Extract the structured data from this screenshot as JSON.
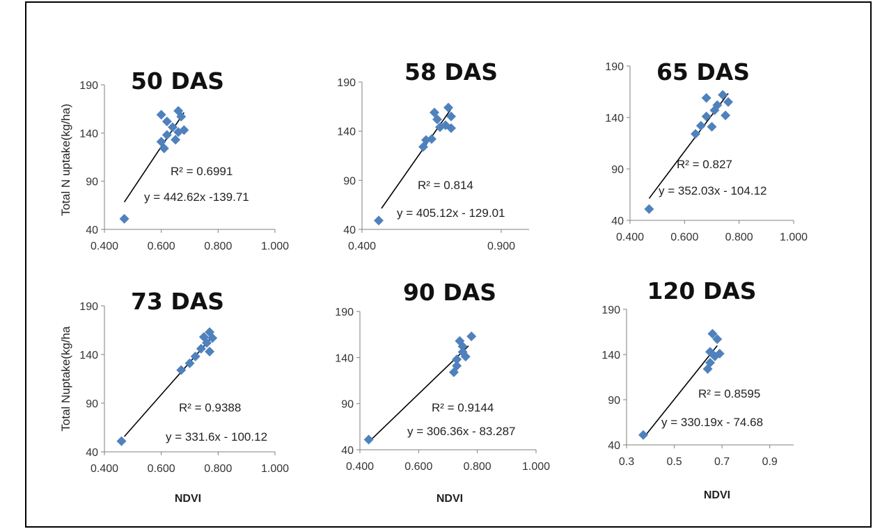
{
  "colors": {
    "marker": "#4f81bd",
    "axis": "#7f7f7f",
    "trendline": "#000000"
  },
  "chart_data": [
    {
      "type": "scatter",
      "title": "50 DAS",
      "ylabel": "Total N uptake(kg/ha)",
      "xlabel": "",
      "xlim": [
        0.4,
        1.0
      ],
      "ylim": [
        40,
        190
      ],
      "xticks": [
        "0.400",
        "0.600",
        "0.800",
        "1.000"
      ],
      "yticks": [
        "40",
        "90",
        "140",
        "190"
      ],
      "r2_label": "R² = 0.6991",
      "equation_label": "y = 442.62x -139.71",
      "trendline": {
        "slope": 442.62,
        "intercept": -139.71,
        "x_range": [
          0.47,
          0.68
        ]
      },
      "points": [
        [
          0.47,
          51
        ],
        [
          0.6,
          131
        ],
        [
          0.61,
          124
        ],
        [
          0.62,
          138
        ],
        [
          0.6,
          159
        ],
        [
          0.62,
          152
        ],
        [
          0.64,
          146
        ],
        [
          0.65,
          133
        ],
        [
          0.66,
          141
        ],
        [
          0.66,
          163
        ],
        [
          0.67,
          157
        ],
        [
          0.68,
          143
        ]
      ]
    },
    {
      "type": "scatter",
      "title": "58 DAS",
      "ylabel": "",
      "xlabel": "",
      "xlim": [
        0.4,
        1.0
      ],
      "ylim": [
        40,
        190
      ],
      "xticks": [
        "0.400",
        "0.900"
      ],
      "yticks": [
        "40",
        "90",
        "140",
        "190"
      ],
      "r2_label": "R² = 0.814",
      "equation_label": "y = 405.12x - 129.01",
      "trendline": {
        "slope": 405.12,
        "intercept": -129.01,
        "x_range": [
          0.47,
          0.72
        ]
      },
      "points": [
        [
          0.46,
          49
        ],
        [
          0.62,
          124
        ],
        [
          0.63,
          131
        ],
        [
          0.65,
          132
        ],
        [
          0.66,
          159
        ],
        [
          0.67,
          152
        ],
        [
          0.68,
          144
        ],
        [
          0.7,
          146
        ],
        [
          0.71,
          164
        ],
        [
          0.72,
          143
        ],
        [
          0.72,
          155
        ]
      ]
    },
    {
      "type": "scatter",
      "title": "65 DAS",
      "ylabel": "",
      "xlabel": "",
      "xlim": [
        0.4,
        1.0
      ],
      "ylim": [
        40,
        190
      ],
      "xticks": [
        "0.400",
        "0.600",
        "0.800",
        "1.000"
      ],
      "yticks": [
        "40",
        "90",
        "140",
        "190"
      ],
      "r2_label": "R² = 0.827",
      "equation_label": "y = 352.03x - 104.12",
      "trendline": {
        "slope": 352.03,
        "intercept": -104.12,
        "x_range": [
          0.47,
          0.76
        ]
      },
      "points": [
        [
          0.47,
          51
        ],
        [
          0.64,
          124
        ],
        [
          0.66,
          132
        ],
        [
          0.68,
          141
        ],
        [
          0.68,
          159
        ],
        [
          0.7,
          131
        ],
        [
          0.71,
          147
        ],
        [
          0.72,
          152
        ],
        [
          0.74,
          162
        ],
        [
          0.75,
          142
        ],
        [
          0.76,
          155
        ]
      ]
    },
    {
      "type": "scatter",
      "title": "73 DAS",
      "ylabel": "Total Nuptake(kg/ha",
      "xlabel": "NDVI",
      "xlim": [
        0.4,
        1.0
      ],
      "ylim": [
        40,
        190
      ],
      "xticks": [
        "0.400",
        "0.600",
        "0.800",
        "1.000"
      ],
      "yticks": [
        "40",
        "90",
        "140",
        "190"
      ],
      "r2_label": "R² = 0.9388",
      "equation_label": "y = 331.6x - 100.12",
      "trendline": {
        "slope": 331.6,
        "intercept": -100.12,
        "x_range": [
          0.47,
          0.78
        ]
      },
      "points": [
        [
          0.46,
          51
        ],
        [
          0.67,
          124
        ],
        [
          0.7,
          131
        ],
        [
          0.72,
          138
        ],
        [
          0.74,
          146
        ],
        [
          0.75,
          158
        ],
        [
          0.76,
          152
        ],
        [
          0.77,
          143
        ],
        [
          0.77,
          163
        ],
        [
          0.78,
          157
        ]
      ]
    },
    {
      "type": "scatter",
      "title": "90 DAS",
      "ylabel": "",
      "xlabel": "NDVI",
      "xlim": [
        0.4,
        1.0
      ],
      "ylim": [
        40,
        190
      ],
      "xticks": [
        "0.400",
        "0.600",
        "0.800",
        "1.000"
      ],
      "yticks": [
        "40",
        "90",
        "140",
        "190"
      ],
      "r2_label": "R² = 0.9144",
      "equation_label": "y = 306.36x - 83.287",
      "trendline": {
        "slope": 306.36,
        "intercept": -83.287,
        "x_range": [
          0.43,
          0.77
        ]
      },
      "points": [
        [
          0.43,
          51
        ],
        [
          0.72,
          124
        ],
        [
          0.73,
          131
        ],
        [
          0.73,
          138
        ],
        [
          0.74,
          158
        ],
        [
          0.75,
          152
        ],
        [
          0.75,
          146
        ],
        [
          0.76,
          141
        ],
        [
          0.78,
          163
        ]
      ]
    },
    {
      "type": "scatter",
      "title": "120 DAS",
      "ylabel": "",
      "xlabel": "NDVI",
      "xlim": [
        0.3,
        1.0
      ],
      "ylim": [
        40,
        190
      ],
      "xticks": [
        "0.3",
        "0.5",
        "0.7",
        "0.9"
      ],
      "yticks": [
        "40",
        "90",
        "140",
        "190"
      ],
      "r2_label": "R² = 0.8595",
      "equation_label": "y = 330.19x - 74.68",
      "trendline": {
        "slope": 330.19,
        "intercept": -74.68,
        "x_range": [
          0.38,
          0.68
        ]
      },
      "points": [
        [
          0.37,
          51
        ],
        [
          0.64,
          124
        ],
        [
          0.65,
          131
        ],
        [
          0.65,
          143
        ],
        [
          0.66,
          163
        ],
        [
          0.67,
          138
        ],
        [
          0.68,
          157
        ],
        [
          0.69,
          141
        ]
      ]
    }
  ]
}
